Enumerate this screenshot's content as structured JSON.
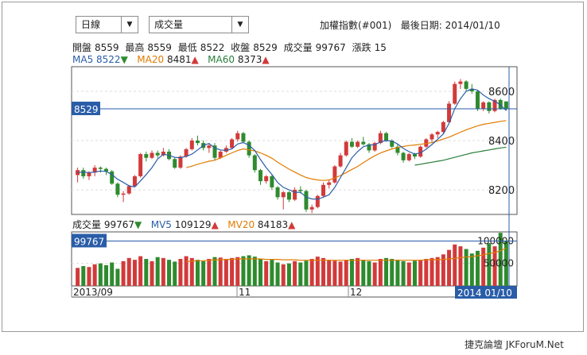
{
  "controls": {
    "period_select": "日線",
    "indicator_select": "成交量"
  },
  "header": {
    "index_name": "加權指數(#001)",
    "last_date_label": "最後日期:",
    "last_date": "2014/01/10"
  },
  "ohlc": {
    "open_label": "開盤",
    "open": "8559",
    "high_label": "最高",
    "high": "8559",
    "low_label": "最低",
    "low": "8522",
    "close_label": "收盤",
    "close": "8529",
    "volume_label": "成交量",
    "volume": "99767",
    "change_label": "漲跌",
    "change": "15"
  },
  "ma": {
    "ma5_label": "MA5",
    "ma5": "8522",
    "ma5_dir": "▼",
    "ma20_label": "MA20",
    "ma20": "8481",
    "ma20_dir": "▲",
    "ma60_label": "MA60",
    "ma60": "8373",
    "ma60_dir": "▲"
  },
  "volume_info": {
    "vol_label": "成交量",
    "vol": "99767",
    "vol_dir": "▼",
    "mv5_label": "MV5",
    "mv5": "109129",
    "mv5_dir": "▲",
    "mv20_label": "MV20",
    "mv20": "84183",
    "mv20_dir": "▲"
  },
  "price_axis": {
    "ticks": [
      "8600",
      "8400",
      "8200"
    ],
    "current": "8529"
  },
  "volume_axis": {
    "ticks": [
      "100000",
      "50000"
    ],
    "current": "99767"
  },
  "x_axis": {
    "labels": [
      "2013/09",
      "11",
      "12"
    ],
    "last": "2014 01/10"
  },
  "colors": {
    "up": "#d23a3a",
    "down": "#2e8b2e",
    "ma5": "#2a5da8",
    "ma20": "#e07b00",
    "ma60": "#2a7d3a",
    "highlight": "#2a5da8"
  },
  "chart_data": {
    "type": "candlestick",
    "price_range": [
      8100,
      8700
    ],
    "volume_range": [
      0,
      120000
    ],
    "candles": [
      {
        "o": 8260,
        "h": 8290,
        "l": 8230,
        "c": 8280
      },
      {
        "o": 8280,
        "h": 8290,
        "l": 8245,
        "c": 8255
      },
      {
        "o": 8255,
        "h": 8275,
        "l": 8240,
        "c": 8270
      },
      {
        "o": 8270,
        "h": 8300,
        "l": 8255,
        "c": 8290
      },
      {
        "o": 8290,
        "h": 8295,
        "l": 8270,
        "c": 8285
      },
      {
        "o": 8285,
        "h": 8290,
        "l": 8260,
        "c": 8275
      },
      {
        "o": 8275,
        "h": 8280,
        "l": 8220,
        "c": 8225
      },
      {
        "o": 8225,
        "h": 8230,
        "l": 8170,
        "c": 8180
      },
      {
        "o": 8180,
        "h": 8195,
        "l": 8150,
        "c": 8185
      },
      {
        "o": 8185,
        "h": 8220,
        "l": 8180,
        "c": 8215
      },
      {
        "o": 8215,
        "h": 8260,
        "l": 8210,
        "c": 8255
      },
      {
        "o": 8255,
        "h": 8350,
        "l": 8250,
        "c": 8345
      },
      {
        "o": 8345,
        "h": 8355,
        "l": 8315,
        "c": 8330
      },
      {
        "o": 8330,
        "h": 8360,
        "l": 8325,
        "c": 8350
      },
      {
        "o": 8350,
        "h": 8360,
        "l": 8330,
        "c": 8340
      },
      {
        "o": 8340,
        "h": 8370,
        "l": 8335,
        "c": 8355
      },
      {
        "o": 8355,
        "h": 8365,
        "l": 8320,
        "c": 8325
      },
      {
        "o": 8325,
        "h": 8330,
        "l": 8285,
        "c": 8290
      },
      {
        "o": 8290,
        "h": 8340,
        "l": 8285,
        "c": 8335
      },
      {
        "o": 8335,
        "h": 8370,
        "l": 8330,
        "c": 8365
      },
      {
        "o": 8365,
        "h": 8410,
        "l": 8360,
        "c": 8400
      },
      {
        "o": 8400,
        "h": 8420,
        "l": 8380,
        "c": 8390
      },
      {
        "o": 8390,
        "h": 8400,
        "l": 8360,
        "c": 8370
      },
      {
        "o": 8370,
        "h": 8385,
        "l": 8350,
        "c": 8380
      },
      {
        "o": 8380,
        "h": 8390,
        "l": 8320,
        "c": 8330
      },
      {
        "o": 8330,
        "h": 8360,
        "l": 8325,
        "c": 8355
      },
      {
        "o": 8355,
        "h": 8380,
        "l": 8350,
        "c": 8370
      },
      {
        "o": 8370,
        "h": 8410,
        "l": 8365,
        "c": 8405
      },
      {
        "o": 8405,
        "h": 8440,
        "l": 8395,
        "c": 8430
      },
      {
        "o": 8430,
        "h": 8435,
        "l": 8390,
        "c": 8395
      },
      {
        "o": 8395,
        "h": 8400,
        "l": 8330,
        "c": 8340
      },
      {
        "o": 8340,
        "h": 8345,
        "l": 8270,
        "c": 8280
      },
      {
        "o": 8280,
        "h": 8285,
        "l": 8220,
        "c": 8235
      },
      {
        "o": 8235,
        "h": 8260,
        "l": 8225,
        "c": 8255
      },
      {
        "o": 8255,
        "h": 8260,
        "l": 8200,
        "c": 8210
      },
      {
        "o": 8210,
        "h": 8215,
        "l": 8160,
        "c": 8170
      },
      {
        "o": 8170,
        "h": 8195,
        "l": 8120,
        "c": 8190
      },
      {
        "o": 8190,
        "h": 8195,
        "l": 8150,
        "c": 8160
      },
      {
        "o": 8160,
        "h": 8210,
        "l": 8155,
        "c": 8200
      },
      {
        "o": 8200,
        "h": 8215,
        "l": 8185,
        "c": 8195
      },
      {
        "o": 8195,
        "h": 8200,
        "l": 8110,
        "c": 8120
      },
      {
        "o": 8120,
        "h": 8140,
        "l": 8105,
        "c": 8130
      },
      {
        "o": 8130,
        "h": 8180,
        "l": 8125,
        "c": 8175
      },
      {
        "o": 8175,
        "h": 8230,
        "l": 8170,
        "c": 8220
      },
      {
        "o": 8220,
        "h": 8240,
        "l": 8205,
        "c": 8230
      },
      {
        "o": 8230,
        "h": 8300,
        "l": 8225,
        "c": 8295
      },
      {
        "o": 8295,
        "h": 8350,
        "l": 8290,
        "c": 8340
      },
      {
        "o": 8340,
        "h": 8400,
        "l": 8335,
        "c": 8395
      },
      {
        "o": 8395,
        "h": 8410,
        "l": 8370,
        "c": 8375
      },
      {
        "o": 8375,
        "h": 8400,
        "l": 8370,
        "c": 8395
      },
      {
        "o": 8395,
        "h": 8415,
        "l": 8380,
        "c": 8385
      },
      {
        "o": 8385,
        "h": 8390,
        "l": 8350,
        "c": 8360
      },
      {
        "o": 8360,
        "h": 8395,
        "l": 8355,
        "c": 8390
      },
      {
        "o": 8390,
        "h": 8440,
        "l": 8385,
        "c": 8430
      },
      {
        "o": 8430,
        "h": 8435,
        "l": 8395,
        "c": 8400
      },
      {
        "o": 8400,
        "h": 8405,
        "l": 8370,
        "c": 8375
      },
      {
        "o": 8375,
        "h": 8385,
        "l": 8340,
        "c": 8350
      },
      {
        "o": 8350,
        "h": 8355,
        "l": 8310,
        "c": 8320
      },
      {
        "o": 8320,
        "h": 8350,
        "l": 8315,
        "c": 8345
      },
      {
        "o": 8345,
        "h": 8350,
        "l": 8325,
        "c": 8335
      },
      {
        "o": 8335,
        "h": 8380,
        "l": 8330,
        "c": 8375
      },
      {
        "o": 8375,
        "h": 8410,
        "l": 8370,
        "c": 8405
      },
      {
        "o": 8405,
        "h": 8430,
        "l": 8395,
        "c": 8425
      },
      {
        "o": 8425,
        "h": 8440,
        "l": 8410,
        "c": 8435
      },
      {
        "o": 8435,
        "h": 8480,
        "l": 8430,
        "c": 8475
      },
      {
        "o": 8475,
        "h": 8560,
        "l": 8470,
        "c": 8550
      },
      {
        "o": 8550,
        "h": 8640,
        "l": 8545,
        "c": 8630
      },
      {
        "o": 8630,
        "h": 8650,
        "l": 8610,
        "c": 8640
      },
      {
        "o": 8640,
        "h": 8645,
        "l": 8600,
        "c": 8610
      },
      {
        "o": 8610,
        "h": 8630,
        "l": 8590,
        "c": 8600
      },
      {
        "o": 8600,
        "h": 8605,
        "l": 8520,
        "c": 8530
      },
      {
        "o": 8530,
        "h": 8560,
        "l": 8520,
        "c": 8555
      },
      {
        "o": 8555,
        "h": 8560,
        "l": 8510,
        "c": 8520
      },
      {
        "o": 8520,
        "h": 8570,
        "l": 8515,
        "c": 8565
      },
      {
        "o": 8565,
        "h": 8570,
        "l": 8525,
        "c": 8530
      },
      {
        "o": 8559,
        "h": 8559,
        "l": 8522,
        "c": 8529
      }
    ],
    "volumes": [
      40,
      44,
      42,
      48,
      50,
      46,
      52,
      38,
      55,
      62,
      58,
      66,
      60,
      55,
      64,
      62,
      58,
      54,
      60,
      66,
      62,
      58,
      55,
      60,
      64,
      63,
      60,
      62,
      64,
      66,
      68,
      65,
      60,
      55,
      58,
      52,
      48,
      50,
      55,
      52,
      56,
      60,
      65,
      62,
      58,
      56,
      54,
      58,
      60,
      62,
      58,
      55,
      52,
      60,
      62,
      60,
      58,
      55,
      52,
      56,
      58,
      60,
      62,
      64,
      70,
      80,
      92,
      88,
      82,
      72,
      78,
      85,
      95,
      88,
      118,
      100
    ],
    "ma5": [
      8270,
      8272,
      8270,
      8272,
      8276,
      8275,
      8262,
      8243,
      8230,
      8216,
      8212,
      8236,
      8262,
      8290,
      8325,
      8345,
      8340,
      8332,
      8330,
      8336,
      8345,
      8362,
      8380,
      8388,
      8370,
      8362,
      8360,
      8366,
      8386,
      8392,
      8381,
      8360,
      8323,
      8290,
      8262,
      8230,
      8210,
      8200,
      8190,
      8190,
      8170,
      8163,
      8162,
      8170,
      8180,
      8210,
      8250,
      8290,
      8330,
      8355,
      8375,
      8382,
      8383,
      8395,
      8400,
      8398,
      8386,
      8368,
      8355,
      8345,
      8350,
      8365,
      8384,
      8405,
      8427,
      8470,
      8530,
      8570,
      8600,
      8610,
      8605,
      8585,
      8570,
      8560,
      8545,
      8522
    ],
    "ma20": [
      null,
      null,
      null,
      null,
      null,
      null,
      null,
      null,
      null,
      null,
      null,
      null,
      null,
      null,
      null,
      null,
      null,
      null,
      null,
      8290,
      8296,
      8304,
      8310,
      8316,
      8320,
      8330,
      8340,
      8350,
      8360,
      8366,
      8362,
      8358,
      8350,
      8340,
      8328,
      8312,
      8298,
      8284,
      8272,
      8260,
      8250,
      8244,
      8240,
      8238,
      8240,
      8248,
      8258,
      8270,
      8283,
      8295,
      8310,
      8325,
      8338,
      8350,
      8358,
      8366,
      8372,
      8376,
      8380,
      8382,
      8385,
      8388,
      8392,
      8398,
      8406,
      8414,
      8424,
      8434,
      8444,
      8452,
      8460,
      8466,
      8470,
      8474,
      8478,
      8481
    ],
    "ma60": [
      null,
      null,
      null,
      null,
      null,
      null,
      null,
      null,
      null,
      null,
      null,
      null,
      null,
      null,
      null,
      null,
      null,
      null,
      null,
      null,
      null,
      null,
      null,
      null,
      null,
      null,
      null,
      null,
      null,
      null,
      null,
      null,
      null,
      null,
      null,
      null,
      null,
      null,
      null,
      null,
      null,
      null,
      null,
      null,
      null,
      null,
      null,
      null,
      null,
      null,
      null,
      null,
      null,
      null,
      null,
      null,
      null,
      null,
      null,
      8300,
      8304,
      8308,
      8312,
      8316,
      8320,
      8326,
      8332,
      8338,
      8344,
      8350,
      8354,
      8358,
      8362,
      8366,
      8370,
      8373
    ],
    "mv20": [
      null,
      null,
      null,
      null,
      null,
      null,
      null,
      null,
      null,
      null,
      null,
      null,
      null,
      null,
      null,
      null,
      null,
      null,
      null,
      54,
      55,
      56,
      56,
      57,
      58,
      58,
      59,
      59,
      60,
      60,
      60,
      60,
      60,
      59,
      59,
      59,
      58,
      58,
      58,
      57,
      57,
      57,
      57,
      57,
      57,
      57,
      57,
      57,
      57,
      57,
      57,
      57,
      57,
      57,
      57,
      57,
      57,
      57,
      57,
      57,
      57,
      58,
      58,
      58,
      59,
      60,
      61,
      63,
      64,
      65,
      67,
      69,
      72,
      74,
      78,
      84
    ]
  },
  "watermark": "捷克論壇 JKForuM.Net"
}
